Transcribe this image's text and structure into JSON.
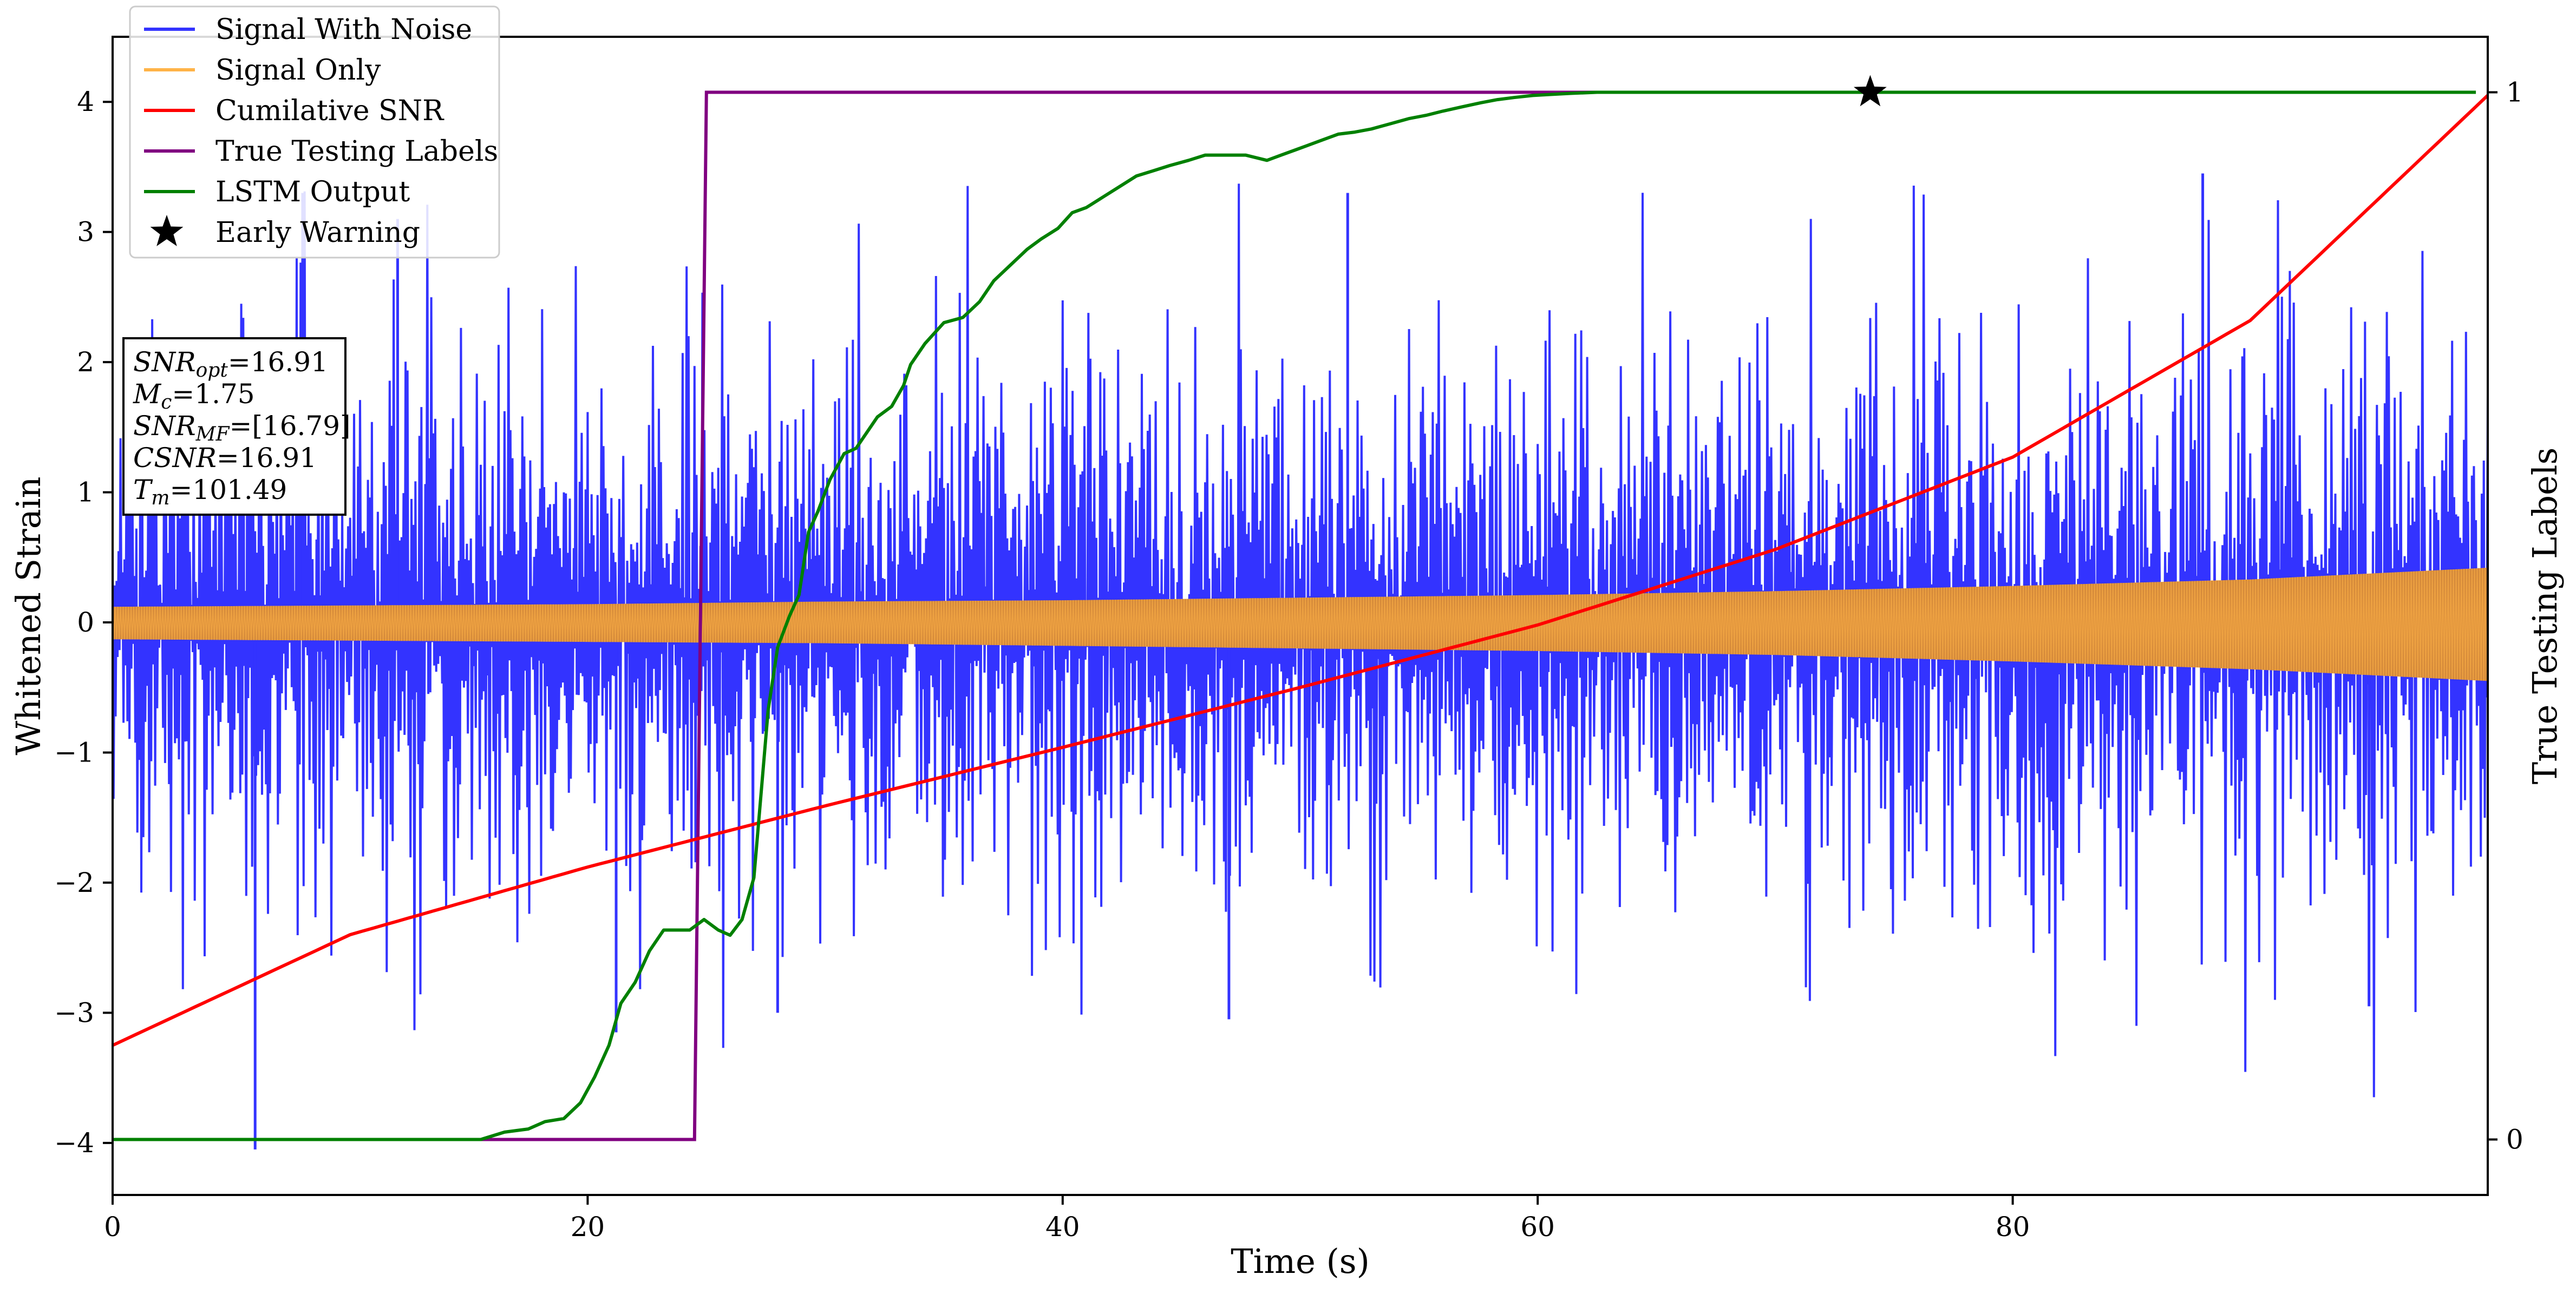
{
  "chart_data": {
    "type": "line",
    "xlabel": "Time (s)",
    "ylabel": "Whitened Strain",
    "y2label": "True Testing Labels",
    "xlim": [
      0,
      100
    ],
    "ylim": [
      -4.4,
      4.5
    ],
    "y2lim": [
      -0.053,
      1.053
    ],
    "xticks": [
      0,
      20,
      40,
      60,
      80
    ],
    "yticks": [
      -4,
      -3,
      -2,
      -1,
      0,
      1,
      2,
      3,
      4
    ],
    "y2ticks": [
      0,
      1
    ],
    "grid": false,
    "legend_position": "top-left",
    "info_box": [
      "SNR_opt=16.91",
      "M_c=1.75",
      "SNR_MF=[16.79]",
      "CSNR=16.91",
      "T_m=101.49"
    ],
    "series": [
      {
        "name": "Signal With Noise",
        "axis": "left",
        "color": "#3333ff",
        "style": "noise",
        "x": [
          0,
          100
        ],
        "center": [
          0,
          0
        ],
        "upper_typical": [
          1.9,
          2.0
        ],
        "lower_typical": [
          -1.8,
          -1.9
        ],
        "upper_extreme": [
          3.3,
          3.45
        ],
        "lower_extreme": [
          -3.0,
          -4.05
        ]
      },
      {
        "name": "Signal Only",
        "axis": "left",
        "color": "#ffb347",
        "fill": "#d4893a",
        "style": "oscillation",
        "x": [
          0,
          10,
          20,
          30,
          40,
          50,
          60,
          70,
          80,
          90,
          100
        ],
        "upper": [
          0.12,
          0.13,
          0.14,
          0.16,
          0.17,
          0.19,
          0.21,
          0.24,
          0.28,
          0.33,
          0.42
        ],
        "lower": [
          -0.13,
          -0.14,
          -0.15,
          -0.16,
          -0.18,
          -0.2,
          -0.22,
          -0.25,
          -0.3,
          -0.36,
          -0.45
        ]
      },
      {
        "name": "Cumilative SNR",
        "axis": "left",
        "color": "#ff0000",
        "style": "line",
        "x": [
          0,
          10,
          20,
          30,
          40,
          50,
          60,
          70,
          80,
          90,
          100
        ],
        "y": [
          -3.25,
          -2.4,
          -1.88,
          -1.41,
          -0.96,
          -0.5,
          -0.02,
          0.56,
          1.27,
          2.32,
          4.05
        ]
      },
      {
        "name": "True Testing Labels",
        "axis": "right",
        "color": "#800080",
        "style": "step",
        "x": [
          0,
          24.5,
          25.0,
          72.5
        ],
        "y": [
          0,
          0,
          1,
          1
        ]
      },
      {
        "name": "LSTM Output",
        "axis": "right",
        "color": "#008000",
        "style": "line",
        "x": [
          0,
          15.5,
          16.5,
          17.5,
          18.2,
          19.0,
          19.7,
          20.3,
          20.9,
          21.4,
          22.0,
          22.6,
          23.2,
          23.8,
          24.3,
          24.9,
          25.5,
          26.0,
          26.5,
          27.0,
          27.3,
          27.6,
          28.0,
          28.5,
          28.9,
          29.3,
          29.7,
          30.2,
          30.8,
          31.3,
          31.6,
          32.2,
          32.8,
          33.3,
          33.6,
          34.2,
          35.0,
          35.8,
          36.5,
          37.1,
          37.8,
          38.5,
          39.1,
          39.8,
          40.4,
          41.0,
          41.7,
          42.4,
          43.1,
          43.8,
          44.5,
          45.3,
          46.0,
          46.8,
          47.7,
          48.6,
          49.2,
          49.8,
          50.4,
          51.0,
          51.6,
          52.3,
          53.0,
          53.8,
          54.6,
          55.3,
          56.0,
          56.8,
          57.6,
          58.3,
          59.0,
          59.8,
          60.6,
          61.4,
          62.5,
          64.0,
          65.5,
          67.0,
          69.0,
          72.0,
          76.0,
          80.0,
          85.0,
          90.0,
          95.0,
          99.5
        ],
        "y": [
          0,
          0,
          0.007,
          0.01,
          0.017,
          0.02,
          0.035,
          0.06,
          0.09,
          0.13,
          0.15,
          0.18,
          0.2,
          0.2,
          0.2,
          0.21,
          0.2,
          0.195,
          0.21,
          0.25,
          0.33,
          0.41,
          0.47,
          0.5,
          0.52,
          0.58,
          0.6,
          0.63,
          0.655,
          0.66,
          0.67,
          0.69,
          0.7,
          0.72,
          0.74,
          0.76,
          0.78,
          0.785,
          0.8,
          0.82,
          0.835,
          0.85,
          0.86,
          0.87,
          0.885,
          0.89,
          0.9,
          0.91,
          0.92,
          0.925,
          0.93,
          0.935,
          0.94,
          0.94,
          0.94,
          0.935,
          0.94,
          0.945,
          0.95,
          0.955,
          0.96,
          0.962,
          0.965,
          0.97,
          0.975,
          0.978,
          0.982,
          0.986,
          0.99,
          0.993,
          0.995,
          0.997,
          0.998,
          0.999,
          1,
          1,
          1,
          1,
          1,
          1,
          1,
          1,
          1,
          1,
          1,
          1
        ]
      },
      {
        "name": "Early Warning",
        "axis": "right",
        "color": "#000000",
        "style": "marker",
        "marker": "star",
        "x": [
          74
        ],
        "y": [
          1
        ]
      }
    ]
  }
}
